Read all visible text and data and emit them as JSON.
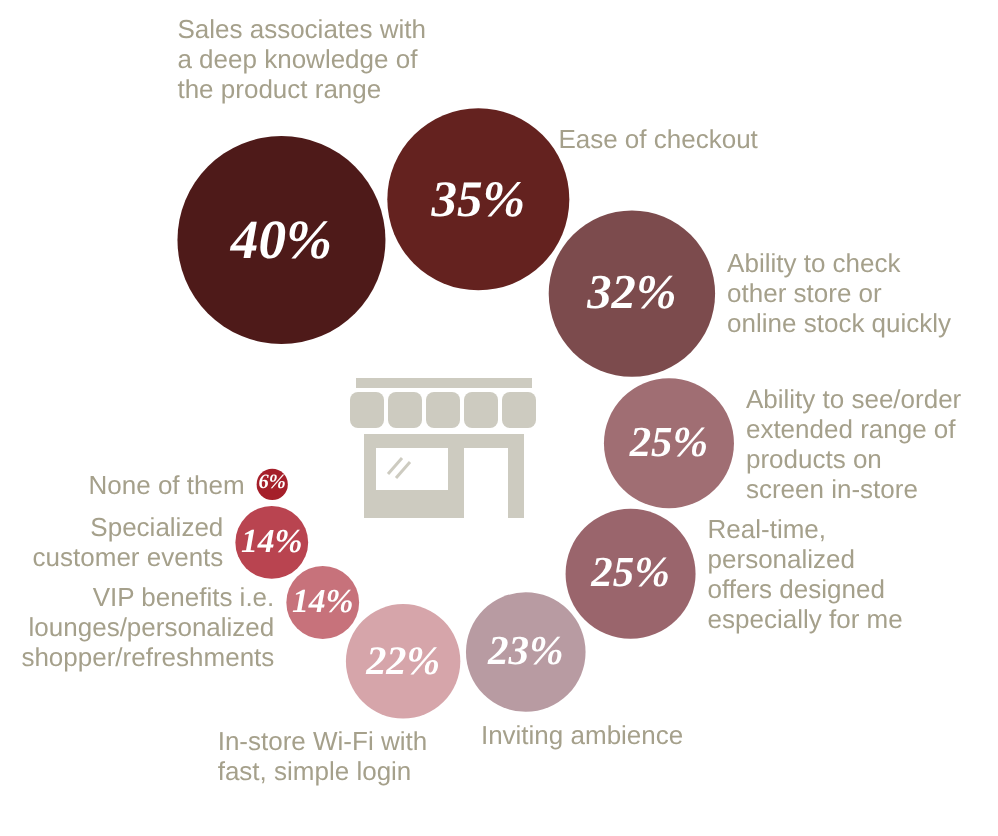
{
  "chart_data": {
    "type": "other",
    "categories": [
      "Sales associates with a deep knowledge of the product range",
      "Ease of checkout",
      "Ability to check other store or online stock quickly",
      "Ability to see/order extended range of products on screen in-store",
      "Real-time, personalized offers designed especially for me",
      "Inviting ambience",
      "In-store Wi-Fi with fast, simple login",
      "VIP benefits i.e. lounges/personalized shopper/refreshments",
      "Specialized customer events",
      "None of them"
    ],
    "values": [
      40,
      35,
      32,
      25,
      25,
      23,
      22,
      14,
      14,
      6
    ],
    "value_labels": [
      "40%",
      "35%",
      "32%",
      "25%",
      "25%",
      "23%",
      "22%",
      "14%",
      "14%",
      "6%"
    ],
    "colors": [
      "#4e1a19",
      "#64221f",
      "#7c4b4d",
      "#a06e73",
      "#9a656c",
      "#b89ba2",
      "#d6a5aa",
      "#c7727b",
      "#b94450",
      "#a51f2a"
    ]
  }
}
